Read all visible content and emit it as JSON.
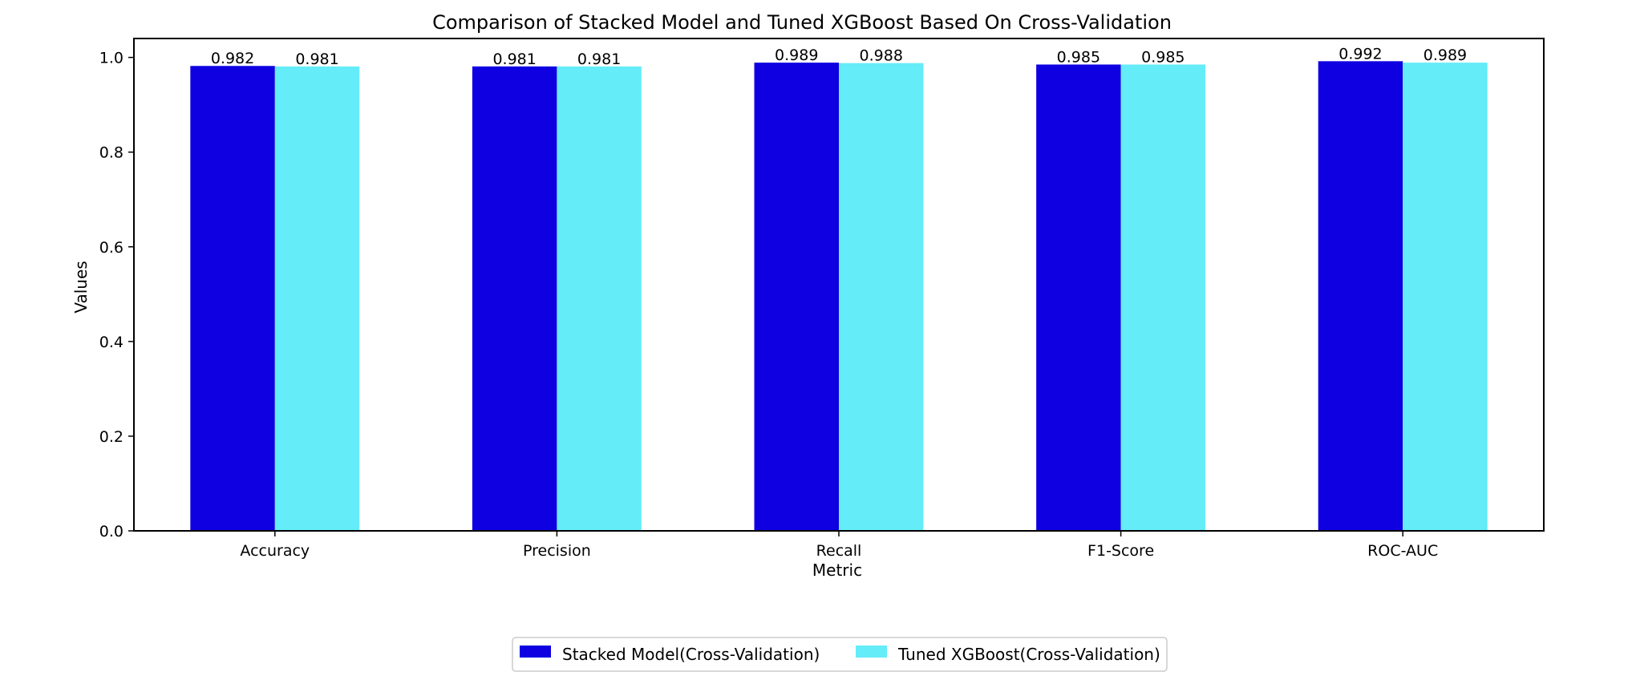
{
  "chart_data": {
    "type": "bar",
    "title": "Comparison of Stacked Model and Tuned XGBoost Based On Cross-Validation",
    "xlabel": "Metric",
    "ylabel": "Values",
    "categories": [
      "Accuracy",
      "Precision",
      "Recall",
      "F1-Score",
      "ROC-AUC"
    ],
    "series": [
      {
        "name": "Stacked Model(Cross-Validation)",
        "color": "#0e00e0",
        "values": [
          0.982,
          0.981,
          0.989,
          0.985,
          0.992
        ],
        "labels": [
          "0.982",
          "0.981",
          "0.989",
          "0.985",
          "0.992"
        ]
      },
      {
        "name": "Tuned XGBoost(Cross-Validation)",
        "color": "#64ecf8",
        "values": [
          0.981,
          0.981,
          0.988,
          0.985,
          0.989
        ],
        "labels": [
          "0.981",
          "0.981",
          "0.988",
          "0.985",
          "0.989"
        ]
      }
    ],
    "ylim": [
      0,
      1.04
    ],
    "yticks": [
      "0.0",
      "0.2",
      "0.4",
      "0.6",
      "0.8",
      "1.0"
    ],
    "grid": false,
    "legend_position": "bottom-center"
  }
}
